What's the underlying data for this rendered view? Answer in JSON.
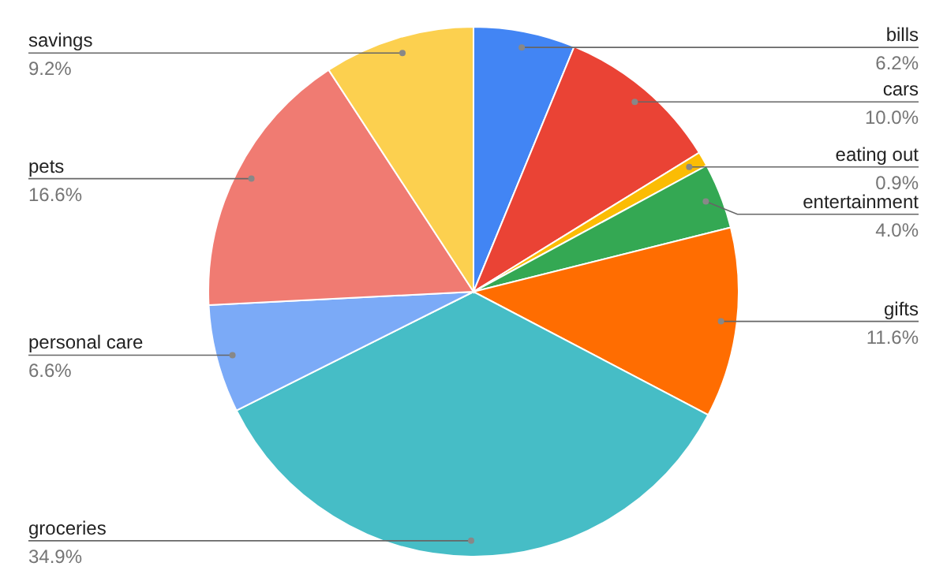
{
  "chart_data": {
    "type": "pie",
    "categories": [
      "bills",
      "cars",
      "eating out",
      "entertainment",
      "gifts",
      "groceries",
      "personal care",
      "pets",
      "savings"
    ],
    "values": [
      6.2,
      10.0,
      0.9,
      4.0,
      11.6,
      34.9,
      6.6,
      16.6,
      9.2
    ],
    "colors": [
      "#4285f4",
      "#ea4335",
      "#fbbc04",
      "#34a853",
      "#ff6d01",
      "#46bdc6",
      "#7baaf7",
      "#f07b72",
      "#fcd04f"
    ],
    "value_labels": [
      "6.2%",
      "10.0%",
      "0.9%",
      "4.0%",
      "11.6%",
      "34.9%",
      "6.6%",
      "16.6%",
      "9.2%"
    ],
    "legend": false
  }
}
